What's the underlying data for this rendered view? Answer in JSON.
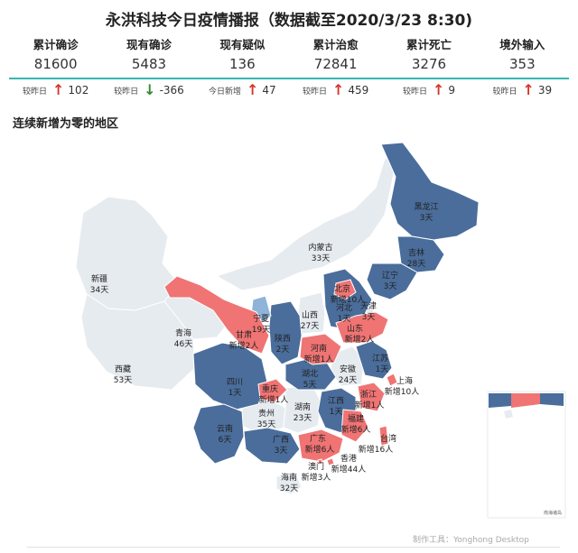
{
  "title": "永洪科技今日疫情播报（数据截至2020/3/23 8:30)",
  "kpis": [
    {
      "label": "累计确诊",
      "value": "81600",
      "delta_label": "较昨日",
      "trend": "up",
      "delta": "102"
    },
    {
      "label": "现有确诊",
      "value": "5483",
      "delta_label": "较昨日",
      "trend": "down",
      "delta": "-366"
    },
    {
      "label": "现有疑似",
      "value": "136",
      "delta_label": "今日新增",
      "trend": "up",
      "delta": "47"
    },
    {
      "label": "累计治愈",
      "value": "72841",
      "delta_label": "较昨日",
      "trend": "up",
      "delta": "459"
    },
    {
      "label": "累计死亡",
      "value": "3276",
      "delta_label": "较昨日",
      "trend": "up",
      "delta": "9"
    },
    {
      "label": "境外输入",
      "value": "353",
      "delta_label": "较昨日",
      "trend": "up",
      "delta": "39"
    }
  ],
  "section_title": "连续新增为零的地区",
  "colors": {
    "zero_long": "#e6ebf0",
    "zero": "#4a6d9b",
    "new": "#ef7473",
    "accent": "#37b6b0",
    "up": "#d9342a",
    "down": "#2f8a2f"
  },
  "regions": [
    {
      "l1": "新疆",
      "l2": "34天"
    },
    {
      "l1": "西藏",
      "l2": "53天"
    },
    {
      "l1": "青海",
      "l2": "46天"
    },
    {
      "l1": "内蒙古",
      "l2": "33天"
    },
    {
      "l1": "黑龙江",
      "l2": "3天"
    },
    {
      "l1": "吉林",
      "l2": "28天"
    },
    {
      "l1": "辽宁",
      "l2": "3天"
    },
    {
      "l1": "北京",
      "l2": "新增10人"
    },
    {
      "l1": "河北",
      "l2": "1天"
    },
    {
      "l1": "天津",
      "l2": "3天"
    },
    {
      "l1": "山西",
      "l2": "27天"
    },
    {
      "l1": "山东",
      "l2": "新增2人"
    },
    {
      "l1": "宁夏",
      "l2": "19天"
    },
    {
      "l1": "甘肃",
      "l2": "新增2人"
    },
    {
      "l1": "陕西",
      "l2": "2天"
    },
    {
      "l1": "河南",
      "l2": "新增1人"
    },
    {
      "l1": "江苏",
      "l2": "1天"
    },
    {
      "l1": "上海",
      "l2": "新增10人"
    },
    {
      "l1": "安徽",
      "l2": "24天"
    },
    {
      "l1": "湖北",
      "l2": "5天"
    },
    {
      "l1": "四川",
      "l2": "1天"
    },
    {
      "l1": "重庆",
      "l2": "新增1人"
    },
    {
      "l1": "浙江",
      "l2": "新增1人"
    },
    {
      "l1": "江西",
      "l2": "1天"
    },
    {
      "l1": "贵州",
      "l2": "35天"
    },
    {
      "l1": "湖南",
      "l2": "23天"
    },
    {
      "l1": "福建",
      "l2": "新增6人"
    },
    {
      "l1": "云南",
      "l2": "6天"
    },
    {
      "l1": "广西",
      "l2": "3天"
    },
    {
      "l1": "广东",
      "l2": "新增6人"
    },
    {
      "l1": "台湾",
      "l2": "新增16人"
    },
    {
      "l1": "香港",
      "l2": "新增44人"
    },
    {
      "l1": "澳门",
      "l2": "新增3人"
    },
    {
      "l1": "海南",
      "l2": "32天"
    }
  ],
  "inset_label": "南海诸岛",
  "footer": "制作工具：Yonghong Desktop"
}
